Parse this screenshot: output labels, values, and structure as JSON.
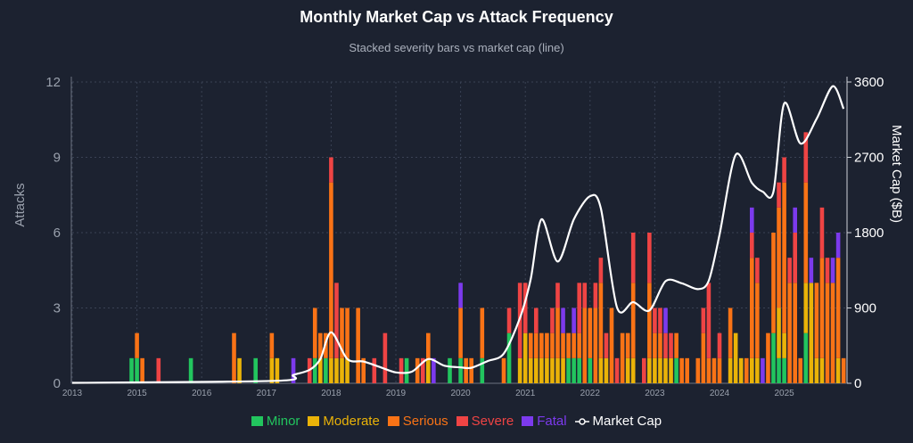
{
  "chart_data": {
    "type": "bar",
    "title": "Monthly Market Cap vs Attack Frequency",
    "subtitle": "Stacked severity bars vs market cap (line)",
    "ylabel": "Attacks",
    "y2label": "Market Cap ($B)",
    "ylim": [
      0,
      12
    ],
    "y2lim": [
      0,
      3600
    ],
    "yticks": [
      "0",
      "3",
      "6",
      "9",
      "12"
    ],
    "y2ticks": [
      "0",
      "900",
      "1800",
      "2700",
      "3600"
    ],
    "xticks": [
      "2013",
      "2015",
      "2016",
      "2017",
      "2018",
      "2019",
      "2020",
      "2021",
      "2022",
      "2023",
      "2024",
      "2025"
    ],
    "xrange": [
      "2014-01",
      "2025-12"
    ],
    "grid": true,
    "legend_position": "bottom",
    "stack_order": [
      "Minor",
      "Moderate",
      "Serious",
      "Severe",
      "Fatal"
    ],
    "series_colors": {
      "Minor": "#22c55e",
      "Moderate": "#eab308",
      "Serious": "#f97316",
      "Severe": "#ef4444",
      "Fatal": "#7c3aed",
      "Market Cap": "#ffffff"
    },
    "legend": [
      "Minor",
      "Moderate",
      "Serious",
      "Severe",
      "Fatal",
      "Market Cap"
    ],
    "bars": [
      {
        "m": "2014-12",
        "v": [
          1,
          0,
          0,
          0,
          0
        ]
      },
      {
        "m": "2015-01",
        "v": [
          1,
          0,
          1,
          0,
          0
        ]
      },
      {
        "m": "2015-02",
        "v": [
          0,
          0,
          1,
          0,
          0
        ]
      },
      {
        "m": "2015-05",
        "v": [
          0,
          0,
          0,
          1,
          0
        ]
      },
      {
        "m": "2015-11",
        "v": [
          1,
          0,
          0,
          0,
          0
        ]
      },
      {
        "m": "2016-07",
        "v": [
          0,
          0,
          2,
          0,
          0
        ]
      },
      {
        "m": "2016-08",
        "v": [
          0,
          1,
          0,
          0,
          0
        ]
      },
      {
        "m": "2016-11",
        "v": [
          1,
          0,
          0,
          0,
          0
        ]
      },
      {
        "m": "2017-02",
        "v": [
          0,
          1,
          1,
          0,
          0
        ]
      },
      {
        "m": "2017-03",
        "v": [
          0,
          1,
          0,
          0,
          0
        ]
      },
      {
        "m": "2017-06",
        "v": [
          0,
          0,
          0,
          0,
          1
        ]
      },
      {
        "m": "2017-09",
        "v": [
          0,
          0,
          0,
          1,
          0
        ]
      },
      {
        "m": "2017-10",
        "v": [
          1,
          0,
          2,
          0,
          0
        ]
      },
      {
        "m": "2017-11",
        "v": [
          0,
          1,
          1,
          0,
          0
        ]
      },
      {
        "m": "2017-12",
        "v": [
          1,
          0,
          1,
          0,
          0
        ]
      },
      {
        "m": "2018-01",
        "v": [
          0,
          1,
          7,
          1,
          0
        ]
      },
      {
        "m": "2018-02",
        "v": [
          0,
          1,
          0,
          3,
          0
        ]
      },
      {
        "m": "2018-03",
        "v": [
          0,
          1,
          2,
          0,
          0
        ]
      },
      {
        "m": "2018-04",
        "v": [
          0,
          1,
          2,
          0,
          0
        ]
      },
      {
        "m": "2018-06",
        "v": [
          0,
          0,
          3,
          0,
          0
        ]
      },
      {
        "m": "2018-07",
        "v": [
          0,
          0,
          1,
          0,
          0
        ]
      },
      {
        "m": "2018-09",
        "v": [
          0,
          0,
          0,
          1,
          0
        ]
      },
      {
        "m": "2018-11",
        "v": [
          0,
          0,
          0,
          2,
          0
        ]
      },
      {
        "m": "2019-02",
        "v": [
          0,
          0,
          0,
          1,
          0
        ]
      },
      {
        "m": "2019-03",
        "v": [
          1,
          0,
          0,
          0,
          0
        ]
      },
      {
        "m": "2019-05",
        "v": [
          0,
          0,
          1,
          0,
          0
        ]
      },
      {
        "m": "2019-06",
        "v": [
          0,
          0,
          0,
          1,
          0
        ]
      },
      {
        "m": "2019-07",
        "v": [
          0,
          1,
          1,
          0,
          0
        ]
      },
      {
        "m": "2019-08",
        "v": [
          0,
          0,
          0,
          0,
          1
        ]
      },
      {
        "m": "2019-11",
        "v": [
          1,
          0,
          0,
          0,
          0
        ]
      },
      {
        "m": "2020-01",
        "v": [
          1,
          0,
          2,
          0,
          1
        ]
      },
      {
        "m": "2020-02",
        "v": [
          0,
          0,
          1,
          0,
          0
        ]
      },
      {
        "m": "2020-03",
        "v": [
          0,
          0,
          1,
          0,
          0
        ]
      },
      {
        "m": "2020-05",
        "v": [
          1,
          0,
          2,
          0,
          0
        ]
      },
      {
        "m": "2020-09",
        "v": [
          0,
          0,
          1,
          0,
          0
        ]
      },
      {
        "m": "2020-10",
        "v": [
          2,
          0,
          0,
          1,
          0
        ]
      },
      {
        "m": "2020-12",
        "v": [
          0,
          1,
          0,
          3,
          0
        ]
      },
      {
        "m": "2021-01",
        "v": [
          0,
          2,
          0,
          2,
          0
        ]
      },
      {
        "m": "2021-02",
        "v": [
          0,
          1,
          1,
          0,
          0
        ]
      },
      {
        "m": "2021-03",
        "v": [
          0,
          1,
          1,
          1,
          0
        ]
      },
      {
        "m": "2021-04",
        "v": [
          0,
          1,
          1,
          0,
          0
        ]
      },
      {
        "m": "2021-05",
        "v": [
          0,
          1,
          1,
          0,
          0
        ]
      },
      {
        "m": "2021-06",
        "v": [
          0,
          1,
          1,
          1,
          0
        ]
      },
      {
        "m": "2021-07",
        "v": [
          0,
          1,
          2,
          1,
          0
        ]
      },
      {
        "m": "2021-08",
        "v": [
          0,
          1,
          1,
          0,
          1
        ]
      },
      {
        "m": "2021-09",
        "v": [
          1,
          0,
          1,
          0,
          0
        ]
      },
      {
        "m": "2021-10",
        "v": [
          1,
          0,
          1,
          0,
          1
        ]
      },
      {
        "m": "2021-11",
        "v": [
          1,
          0,
          1,
          2,
          0
        ]
      },
      {
        "m": "2021-12",
        "v": [
          0,
          0,
          3,
          1,
          0
        ]
      },
      {
        "m": "2022-01",
        "v": [
          1,
          0,
          2,
          0,
          0
        ]
      },
      {
        "m": "2022-02",
        "v": [
          0,
          0,
          3,
          1,
          0
        ]
      },
      {
        "m": "2022-03",
        "v": [
          0,
          1,
          3,
          1,
          0
        ]
      },
      {
        "m": "2022-04",
        "v": [
          0,
          1,
          0,
          1,
          0
        ]
      },
      {
        "m": "2022-05",
        "v": [
          0,
          0,
          3,
          0,
          0
        ]
      },
      {
        "m": "2022-06",
        "v": [
          0,
          0,
          0,
          1,
          0
        ]
      },
      {
        "m": "2022-07",
        "v": [
          0,
          0,
          2,
          0,
          0
        ]
      },
      {
        "m": "2022-08",
        "v": [
          0,
          1,
          1,
          0,
          0
        ]
      },
      {
        "m": "2022-09",
        "v": [
          0,
          1,
          3,
          2,
          0
        ]
      },
      {
        "m": "2022-11",
        "v": [
          0,
          0,
          0,
          1,
          0
        ]
      },
      {
        "m": "2022-12",
        "v": [
          0,
          1,
          3,
          2,
          0
        ]
      },
      {
        "m": "2023-01",
        "v": [
          0,
          1,
          1,
          1,
          0
        ]
      },
      {
        "m": "2023-02",
        "v": [
          0,
          1,
          1,
          1,
          0
        ]
      },
      {
        "m": "2023-03",
        "v": [
          0,
          1,
          0,
          1,
          1
        ]
      },
      {
        "m": "2023-04",
        "v": [
          0,
          1,
          0,
          1,
          0
        ]
      },
      {
        "m": "2023-05",
        "v": [
          1,
          0,
          1,
          0,
          0
        ]
      },
      {
        "m": "2023-06",
        "v": [
          0,
          0,
          1,
          0,
          0
        ]
      },
      {
        "m": "2023-07",
        "v": [
          0,
          0,
          1,
          0,
          0
        ]
      },
      {
        "m": "2023-09",
        "v": [
          0,
          0,
          1,
          0,
          0
        ]
      },
      {
        "m": "2023-10",
        "v": [
          0,
          0,
          2,
          1,
          0
        ]
      },
      {
        "m": "2023-11",
        "v": [
          0,
          0,
          1,
          3,
          0
        ]
      },
      {
        "m": "2023-12",
        "v": [
          0,
          0,
          1,
          0,
          0
        ]
      },
      {
        "m": "2024-01",
        "v": [
          0,
          0,
          1,
          1,
          0
        ]
      },
      {
        "m": "2024-03",
        "v": [
          0,
          1,
          2,
          0,
          0
        ]
      },
      {
        "m": "2024-04",
        "v": [
          0,
          2,
          0,
          0,
          0
        ]
      },
      {
        "m": "2024-05",
        "v": [
          0,
          1,
          0,
          0,
          0
        ]
      },
      {
        "m": "2024-06",
        "v": [
          0,
          0,
          1,
          0,
          0
        ]
      },
      {
        "m": "2024-07",
        "v": [
          0,
          1,
          4,
          1,
          1
        ]
      },
      {
        "m": "2024-08",
        "v": [
          0,
          1,
          3,
          1,
          0
        ]
      },
      {
        "m": "2024-09",
        "v": [
          0,
          0,
          0,
          0,
          1
        ]
      },
      {
        "m": "2024-10",
        "v": [
          0,
          0,
          2,
          0,
          0
        ]
      },
      {
        "m": "2024-11",
        "v": [
          2,
          0,
          4,
          0,
          0
        ]
      },
      {
        "m": "2024-12",
        "v": [
          1,
          2,
          4,
          1,
          0
        ]
      },
      {
        "m": "2025-01",
        "v": [
          1,
          1,
          6,
          1,
          0
        ]
      },
      {
        "m": "2025-02",
        "v": [
          0,
          0,
          4,
          1,
          0
        ]
      },
      {
        "m": "2025-03",
        "v": [
          0,
          0,
          4,
          2,
          1
        ]
      },
      {
        "m": "2025-04",
        "v": [
          0,
          0,
          1,
          0,
          0
        ]
      },
      {
        "m": "2025-05",
        "v": [
          2,
          2,
          4,
          2,
          0
        ]
      },
      {
        "m": "2025-06",
        "v": [
          0,
          4,
          0,
          0,
          1
        ]
      },
      {
        "m": "2025-07",
        "v": [
          0,
          1,
          3,
          0,
          0
        ]
      },
      {
        "m": "2025-08",
        "v": [
          0,
          1,
          4,
          2,
          0
        ]
      },
      {
        "m": "2025-09",
        "v": [
          0,
          0,
          4,
          1,
          0
        ]
      },
      {
        "m": "2025-10",
        "v": [
          0,
          0,
          4,
          0,
          1
        ]
      },
      {
        "m": "2025-11",
        "v": [
          0,
          1,
          4,
          0,
          1
        ]
      },
      {
        "m": "2025-12",
        "v": [
          0,
          0,
          1,
          0,
          0
        ]
      }
    ],
    "market_cap": [
      [
        "2014-01",
        5
      ],
      [
        "2017-03",
        30
      ],
      [
        "2017-06",
        100
      ],
      [
        "2017-09",
        160
      ],
      [
        "2017-11",
        290
      ],
      [
        "2018-01",
        610
      ],
      [
        "2018-04",
        290
      ],
      [
        "2018-07",
        260
      ],
      [
        "2018-10",
        195
      ],
      [
        "2019-01",
        130
      ],
      [
        "2019-04",
        140
      ],
      [
        "2019-07",
        290
      ],
      [
        "2019-10",
        210
      ],
      [
        "2020-01",
        190
      ],
      [
        "2020-03",
        185
      ],
      [
        "2020-06",
        265
      ],
      [
        "2020-09",
        355
      ],
      [
        "2020-12",
        780
      ],
      [
        "2021-02",
        1245
      ],
      [
        "2021-04",
        1960
      ],
      [
        "2021-07",
        1455
      ],
      [
        "2021-10",
        1960
      ],
      [
        "2022-01",
        2235
      ],
      [
        "2022-03",
        2090
      ],
      [
        "2022-06",
        905
      ],
      [
        "2022-09",
        970
      ],
      [
        "2022-12",
        870
      ],
      [
        "2023-03",
        1220
      ],
      [
        "2023-06",
        1195
      ],
      [
        "2023-09",
        1125
      ],
      [
        "2023-11",
        1225
      ],
      [
        "2024-01",
        1775
      ],
      [
        "2024-04",
        2730
      ],
      [
        "2024-07",
        2395
      ],
      [
        "2024-09",
        2290
      ],
      [
        "2024-11",
        2290
      ],
      [
        "2025-01",
        3345
      ],
      [
        "2025-04",
        2865
      ],
      [
        "2025-07",
        3160
      ],
      [
        "2025-10",
        3550
      ],
      [
        "2025-12",
        3280
      ]
    ]
  }
}
